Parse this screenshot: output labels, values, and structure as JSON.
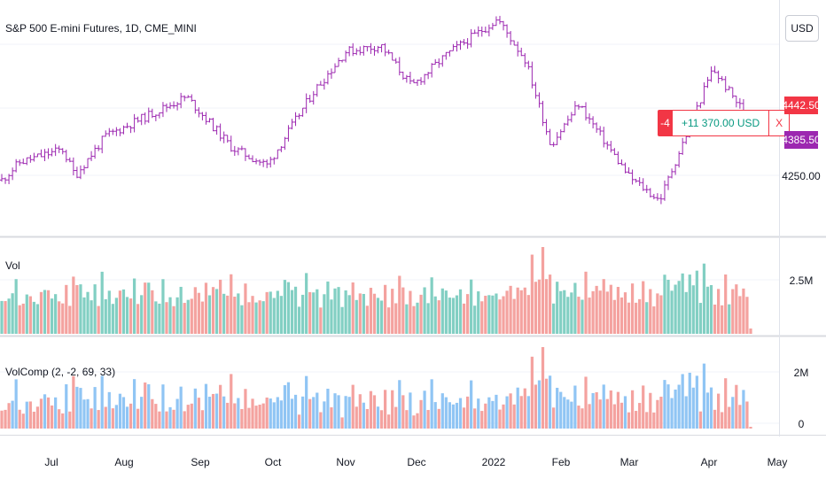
{
  "header": {
    "title": "S&P 500 E-mini Futures, 1D, CME_MINI",
    "currency_button": "USD"
  },
  "price_pane": {
    "axis_labels": [
      "4250.00"
    ],
    "last_price_label": "4442.50",
    "position_price_label": "4385.50",
    "last_price_color": "#f23645",
    "position_price_color": "#9c27b0",
    "bar_color": "#9c27b0"
  },
  "position": {
    "quantity": "-4",
    "pl": "+11 370.00 USD",
    "close_symbol": "X"
  },
  "volume_pane": {
    "label": "Vol",
    "axis_labels": [
      "2.5M"
    ],
    "up_color": "#82cfc3",
    "down_color": "#f4a29f"
  },
  "volcomp_pane": {
    "label": "VolComp (2, -2, 69, 33)",
    "axis_labels": [
      "2M",
      "0"
    ],
    "blue_color": "#90c5f4",
    "red_color": "#f4a29f"
  },
  "time_axis": [
    "Jul",
    "Aug",
    "Sep",
    "Oct",
    "Nov",
    "Dec",
    "2022",
    "Feb",
    "Mar",
    "Apr",
    "May"
  ],
  "chart_data": {
    "type": "ohlc-bars",
    "symbol": "S&P 500 E-mini Futures",
    "interval": "1D",
    "price_ylim_approx": [
      4150,
      4800
    ],
    "close_anchors": [
      {
        "date": "2021-06-21",
        "close": 4240
      },
      {
        "date": "2021-06-28",
        "close": 4300
      },
      {
        "date": "2021-07-15",
        "close": 4345
      },
      {
        "date": "2021-07-20",
        "close": 4255
      },
      {
        "date": "2021-08-01",
        "close": 4390
      },
      {
        "date": "2021-09-02",
        "close": 4525
      },
      {
        "date": "2021-09-20",
        "close": 4350
      },
      {
        "date": "2021-10-04",
        "close": 4290
      },
      {
        "date": "2021-10-22",
        "close": 4540
      },
      {
        "date": "2021-11-04",
        "close": 4680
      },
      {
        "date": "2021-11-18",
        "close": 4700
      },
      {
        "date": "2021-11-30",
        "close": 4560
      },
      {
        "date": "2021-12-14",
        "close": 4670
      },
      {
        "date": "2022-01-03",
        "close": 4790
      },
      {
        "date": "2022-01-14",
        "close": 4650
      },
      {
        "date": "2022-01-24",
        "close": 4360
      },
      {
        "date": "2022-02-04",
        "close": 4500
      },
      {
        "date": "2022-02-24",
        "close": 4250
      },
      {
        "date": "2022-03-08",
        "close": 4170
      },
      {
        "date": "2022-03-29",
        "close": 4620
      },
      {
        "date": "2022-04-13",
        "close": 4442.5
      }
    ],
    "last_price": 4442.5,
    "position_price": 4385.5
  }
}
